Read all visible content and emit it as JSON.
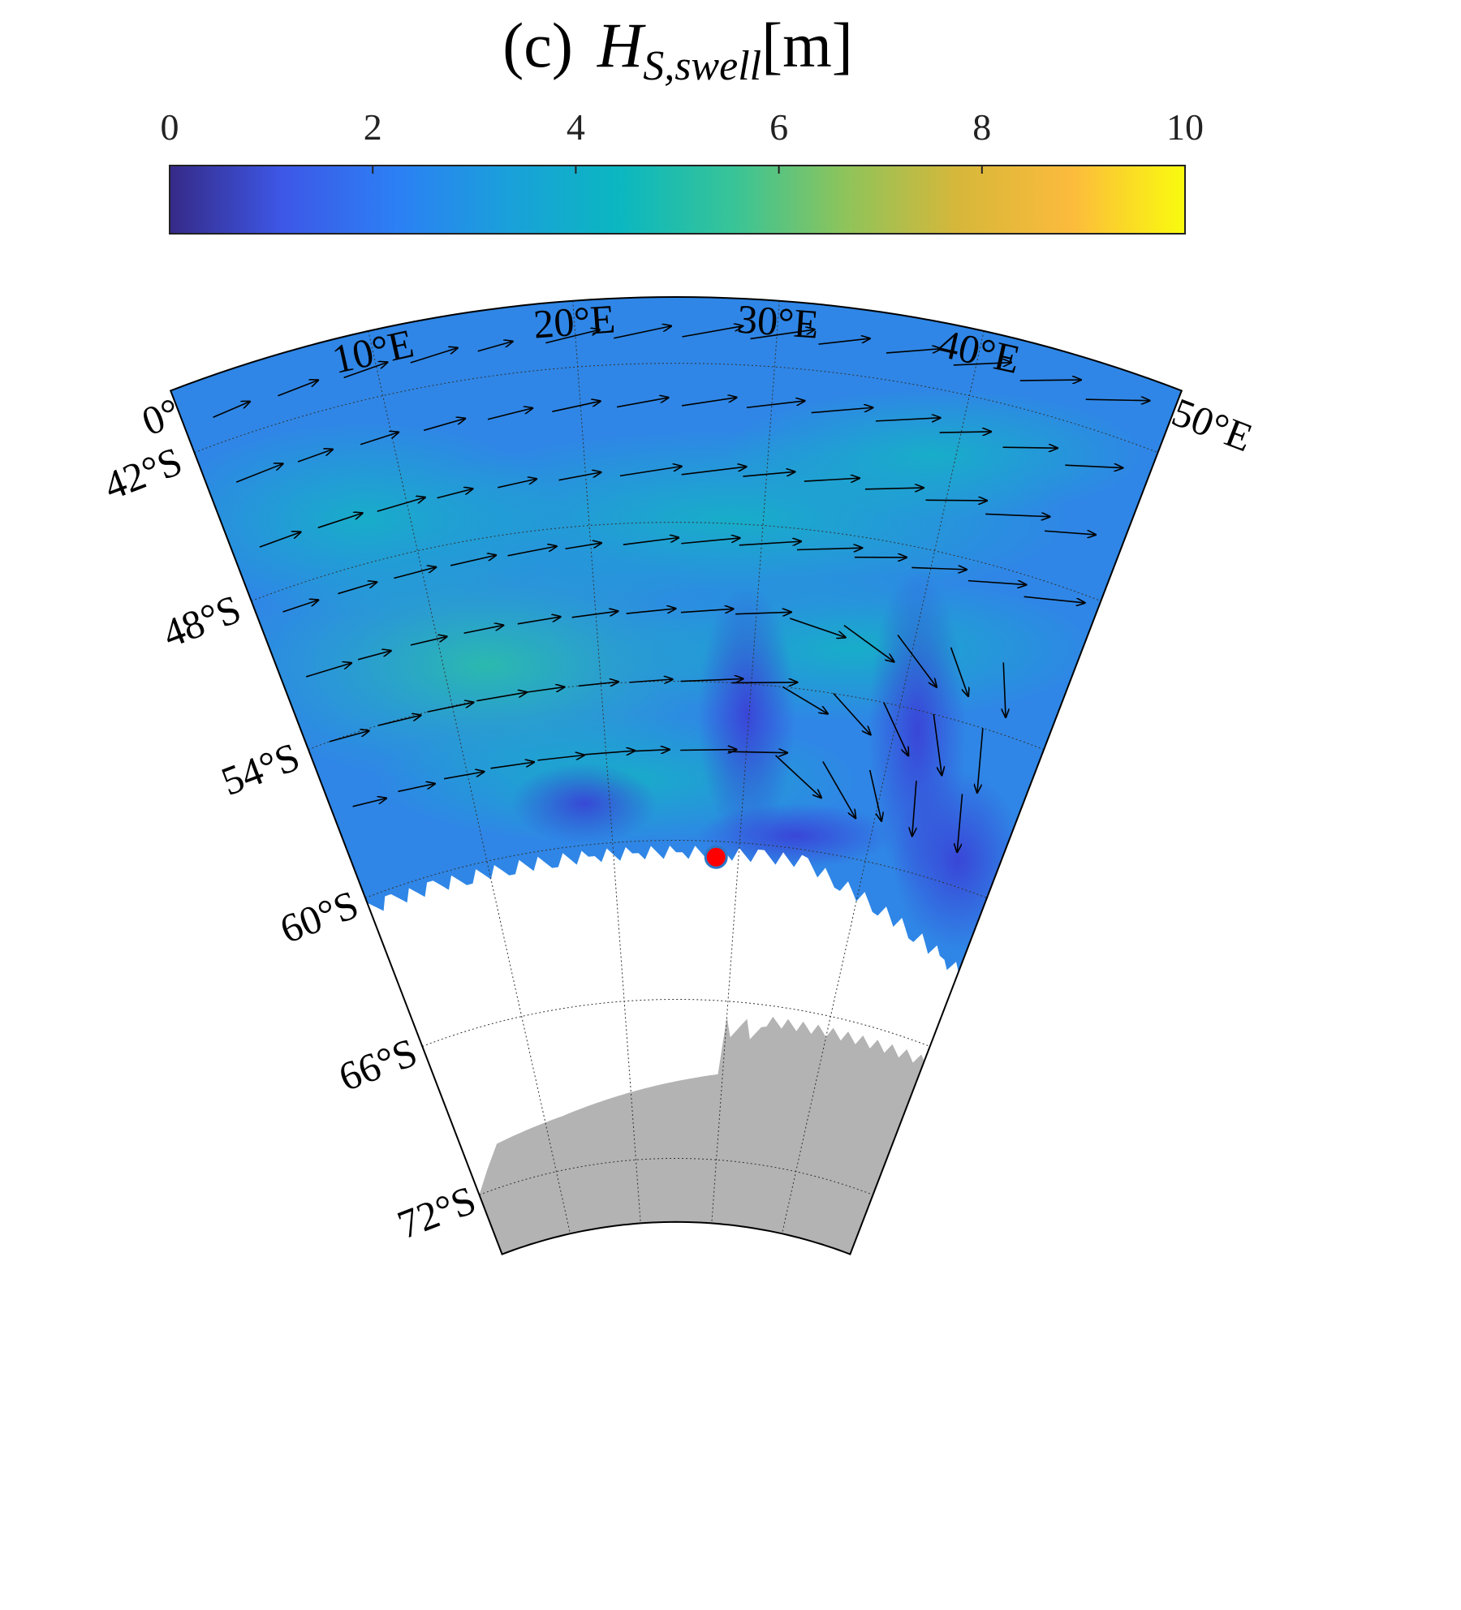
{
  "chart_data": {
    "type": "map",
    "title": {
      "prefix": "(c)",
      "symbol": "H",
      "subscript": "S,swell",
      "unit": "[m]"
    },
    "colorbar": {
      "clim": [
        0,
        10
      ],
      "ticks": [
        0,
        2,
        4,
        6,
        8,
        10
      ],
      "colors": [
        "#352a87",
        "#3d57e6",
        "#2c7ff5",
        "#1aa0da",
        "#0bb7c0",
        "#38c497",
        "#8fc45a",
        "#d7b73a",
        "#fcbb3c",
        "#f9fb0e"
      ]
    },
    "lonlim": [
      0,
      50
    ],
    "latlim": [
      -39.5,
      -74.4
    ],
    "lon_ticks": [
      {
        "value": 0,
        "label": "0°"
      },
      {
        "value": 10,
        "label": "10°E"
      },
      {
        "value": 20,
        "label": "20°E"
      },
      {
        "value": 30,
        "label": "30°E"
      },
      {
        "value": 40,
        "label": "40°E"
      },
      {
        "value": 50,
        "label": "50°E"
      }
    ],
    "lat_ticks": [
      {
        "value": -42,
        "label": "42°S"
      },
      {
        "value": -48,
        "label": "48°S"
      },
      {
        "value": -54,
        "label": "54°S"
      },
      {
        "value": -60,
        "label": "60°S"
      },
      {
        "value": -66,
        "label": "66°S"
      },
      {
        "value": -72,
        "label": "72°S"
      }
    ],
    "ocean_color": "#2f86e6",
    "land_color": "#b3b3b3",
    "marker_color": "#ff0000"
  }
}
